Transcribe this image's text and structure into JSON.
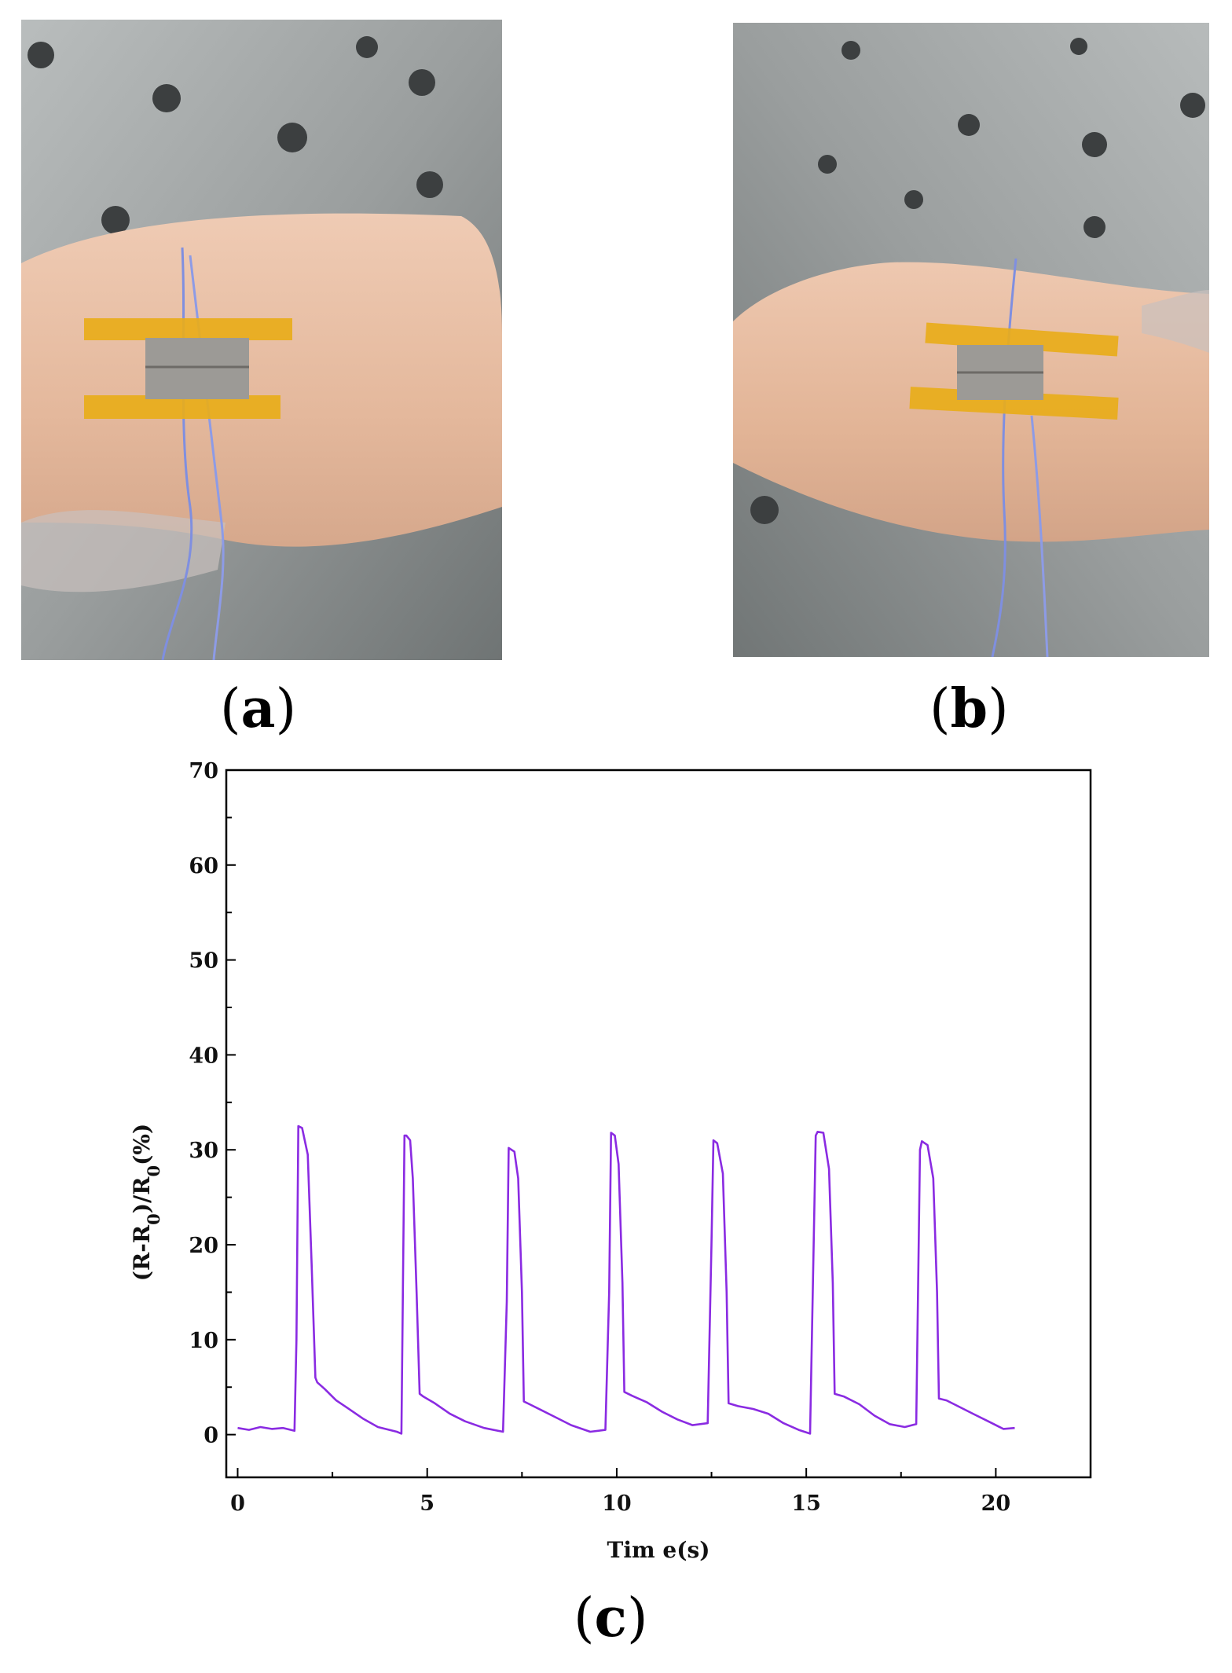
{
  "panels": {
    "a": {
      "label": "a"
    },
    "b": {
      "label": "b"
    },
    "c": {
      "label": "c"
    }
  },
  "colors": {
    "series": "#8a2be2",
    "axis": "#000000",
    "tape": "#e8ac1a",
    "skin": "#e9c3aa",
    "metal": "#8f9393"
  },
  "chart_data": {
    "type": "line",
    "xlabel": "Tim e(s)",
    "ylabel": "(R-R0)/R0(%)",
    "ylabel_parts": {
      "open": "(R-R",
      "sub1": "0",
      "mid": ")/R",
      "sub2": "0",
      "close": "(%)"
    },
    "xlim": [
      -0.3,
      22.5
    ],
    "ylim": [
      -4.5,
      70
    ],
    "xticks": [
      0,
      5,
      10,
      15,
      20
    ],
    "xtick_labels": [
      "0",
      "5",
      "10",
      "15",
      "20"
    ],
    "yticks": [
      0,
      10,
      20,
      30,
      40,
      50,
      60,
      70
    ],
    "ytick_labels": [
      "0",
      "10",
      "20",
      "30",
      "40",
      "50",
      "60",
      "70"
    ],
    "grid": false,
    "legend": "none",
    "series": [
      {
        "color": "#8a2be2",
        "x": [
          0.0,
          0.3,
          0.6,
          0.9,
          1.2,
          1.5,
          1.55,
          1.6,
          1.7,
          1.85,
          1.95,
          2.05,
          2.1,
          2.3,
          2.6,
          2.9,
          3.3,
          3.7,
          4.2,
          4.32,
          4.4,
          4.45,
          4.55,
          4.62,
          4.72,
          4.8,
          4.9,
          5.2,
          5.6,
          6.0,
          6.5,
          7.0,
          7.1,
          7.15,
          7.3,
          7.4,
          7.5,
          7.55,
          7.7,
          8.0,
          8.4,
          8.8,
          9.3,
          9.7,
          9.8,
          9.85,
          9.95,
          10.05,
          10.15,
          10.2,
          10.4,
          10.8,
          11.2,
          11.6,
          12.0,
          12.4,
          12.5,
          12.55,
          12.65,
          12.8,
          12.9,
          12.95,
          13.2,
          13.6,
          14.0,
          14.4,
          14.8,
          15.1,
          15.25,
          15.3,
          15.45,
          15.6,
          15.7,
          15.75,
          16.0,
          16.4,
          16.8,
          17.2,
          17.6,
          17.9,
          18.0,
          18.05,
          18.2,
          18.35,
          18.45,
          18.5,
          18.7,
          19.0,
          19.4,
          19.8,
          20.2,
          20.5
        ],
        "y": [
          0.7,
          0.5,
          0.8,
          0.6,
          0.7,
          0.4,
          10.0,
          32.5,
          32.3,
          29.5,
          18.0,
          6.0,
          5.5,
          4.8,
          3.6,
          2.8,
          1.7,
          0.8,
          0.3,
          0.1,
          31.5,
          31.5,
          31.0,
          27.0,
          15.0,
          4.3,
          4.0,
          3.3,
          2.2,
          1.4,
          0.7,
          0.3,
          14.0,
          30.2,
          29.8,
          27.0,
          15.0,
          3.5,
          3.2,
          2.6,
          1.8,
          1.0,
          0.3,
          0.5,
          15.0,
          31.8,
          31.5,
          28.5,
          16.0,
          4.5,
          4.1,
          3.4,
          2.4,
          1.6,
          1.0,
          1.2,
          20.0,
          31.0,
          30.7,
          27.5,
          15.0,
          3.3,
          3.0,
          2.7,
          2.2,
          1.2,
          0.5,
          0.1,
          31.5,
          31.9,
          31.8,
          28.0,
          16.0,
          4.3,
          4.0,
          3.2,
          2.0,
          1.1,
          0.8,
          1.1,
          30.0,
          30.9,
          30.5,
          27.0,
          15.0,
          3.8,
          3.6,
          3.0,
          2.2,
          1.4,
          0.6,
          0.7
        ]
      }
    ]
  }
}
